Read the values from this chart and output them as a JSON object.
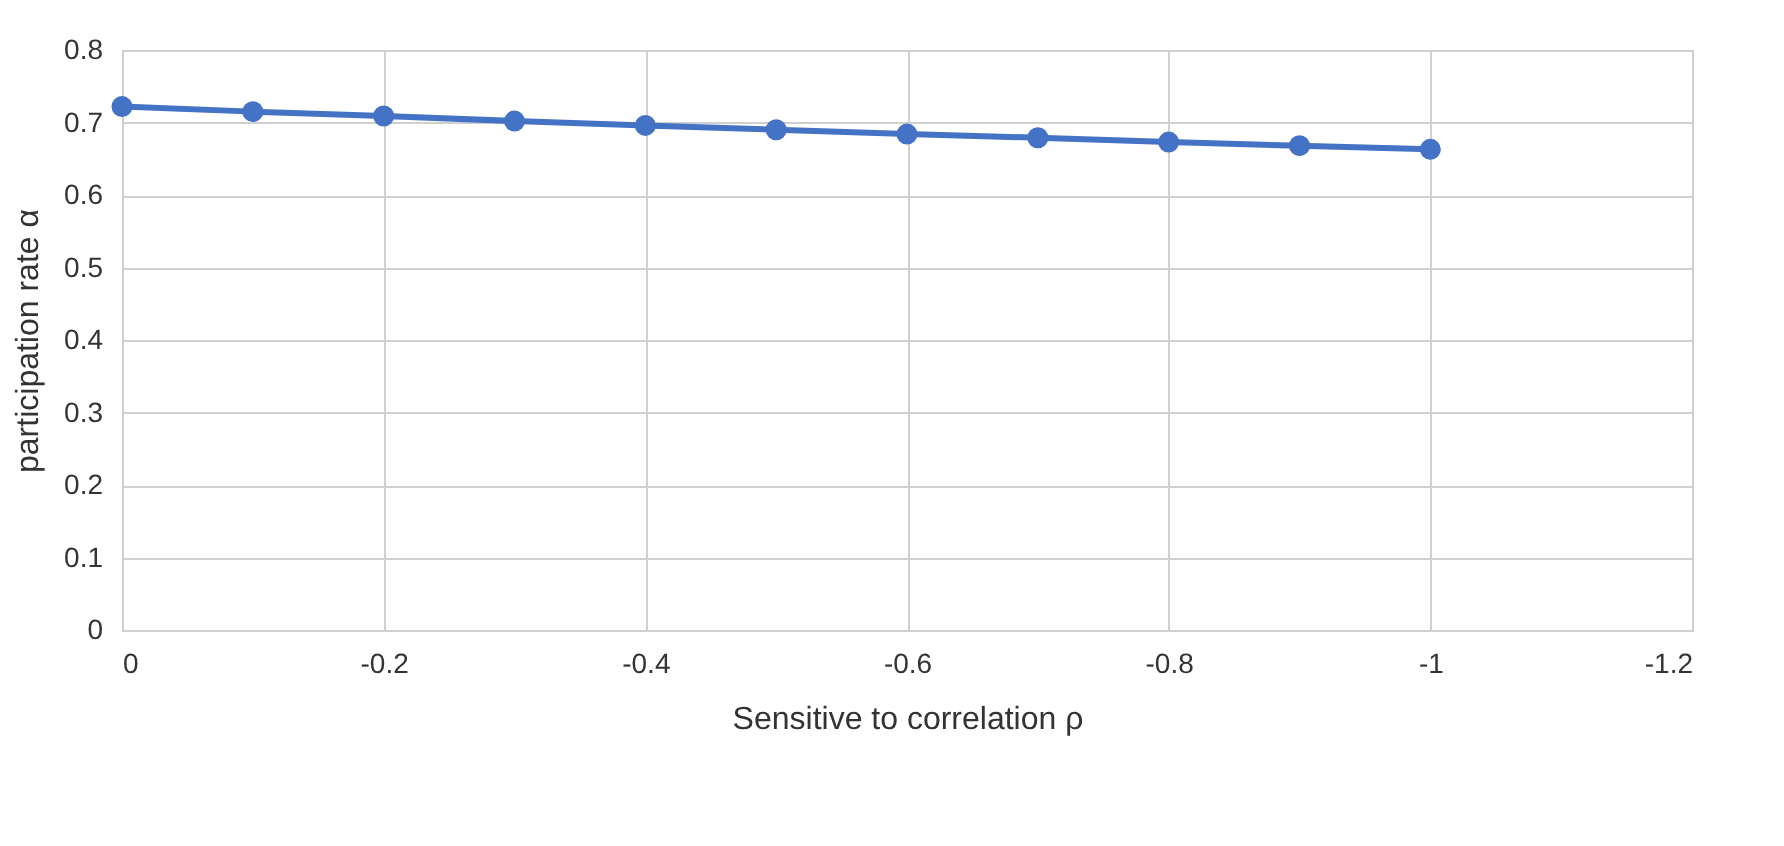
{
  "chart_data": {
    "type": "line",
    "xlabel": "Sensitive to correlation ρ",
    "ylabel": "participation rate α",
    "x": [
      0,
      -0.1,
      -0.2,
      -0.3,
      -0.4,
      -0.5,
      -0.6,
      -0.7,
      -0.8,
      -0.9,
      -1
    ],
    "series": [
      {
        "color": "#4472c4",
        "values": [
          0.722,
          0.715,
          0.709,
          0.702,
          0.696,
          0.69,
          0.684,
          0.679,
          0.673,
          0.668,
          0.663
        ]
      }
    ],
    "xlim": [
      0,
      -1.2
    ],
    "xticks": [
      0,
      -0.2,
      -0.4,
      -0.6,
      -0.8,
      -1,
      -1.2
    ],
    "ylim": [
      0,
      0.8
    ],
    "yticks": [
      0,
      0.1,
      0.2,
      0.3,
      0.4,
      0.5,
      0.6,
      0.7,
      0.8
    ],
    "grid": true,
    "marker": "circle",
    "line_style": "solid"
  }
}
